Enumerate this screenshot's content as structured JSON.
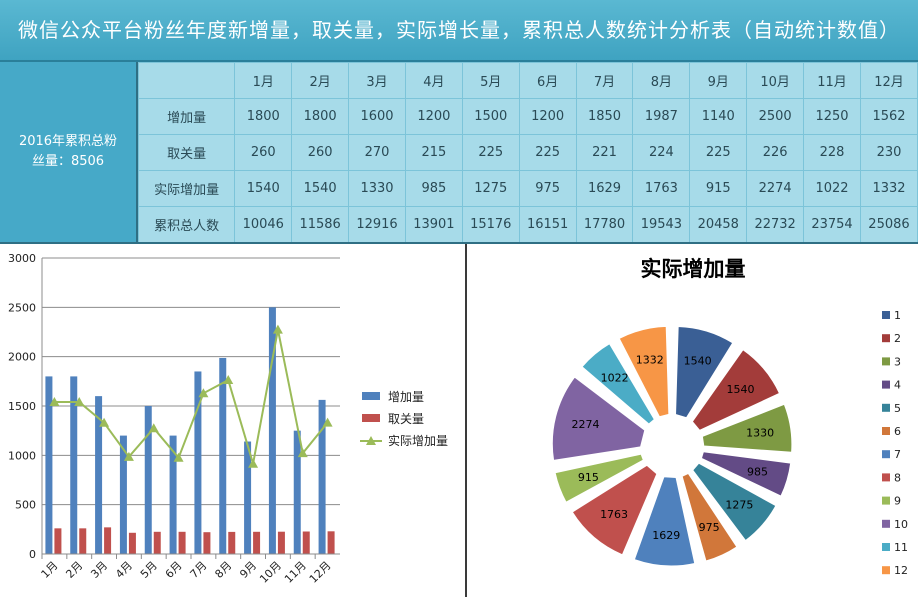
{
  "title": "微信公众平台粉丝年度新增量，取关量，实际增长量，累积总人数统计分析表（自动统计数值）",
  "summary": "2016年累积总粉丝量：8506",
  "table": {
    "months": [
      "1月",
      "2月",
      "3月",
      "4月",
      "5月",
      "6月",
      "7月",
      "8月",
      "9月",
      "10月",
      "11月",
      "12月"
    ],
    "rows": [
      {
        "label": "增加量",
        "values": [
          1800,
          1800,
          1600,
          1200,
          1500,
          1200,
          1850,
          1987,
          1140,
          2500,
          1250,
          1562
        ]
      },
      {
        "label": "取关量",
        "values": [
          260,
          260,
          270,
          215,
          225,
          225,
          221,
          224,
          225,
          226,
          228,
          230
        ]
      },
      {
        "label": "实际增加量",
        "values": [
          1540,
          1540,
          1330,
          985,
          1275,
          975,
          1629,
          1763,
          915,
          2274,
          1022,
          1332
        ]
      },
      {
        "label": "累积总人数",
        "values": [
          10046,
          11586,
          12916,
          13901,
          15176,
          16151,
          17780,
          19543,
          20458,
          22732,
          23754,
          25086
        ]
      }
    ]
  },
  "chart_data": [
    {
      "type": "bar",
      "categories": [
        "1月",
        "2月",
        "3月",
        "4月",
        "5月",
        "6月",
        "7月",
        "8月",
        "9月",
        "10月",
        "11月",
        "12月"
      ],
      "ylim": [
        0,
        3000
      ],
      "yticks": [
        0,
        500,
        1000,
        1500,
        2000,
        2500,
        3000
      ],
      "grid": true,
      "legend": "right",
      "series": [
        {
          "name": "增加量",
          "kind": "bar",
          "color": "#4f81bd",
          "values": [
            1800,
            1800,
            1600,
            1200,
            1500,
            1200,
            1850,
            1987,
            1140,
            2500,
            1250,
            1562
          ]
        },
        {
          "name": "取关量",
          "kind": "bar",
          "color": "#c0504d",
          "values": [
            260,
            260,
            270,
            215,
            225,
            225,
            221,
            224,
            225,
            226,
            228,
            230
          ]
        },
        {
          "name": "实际增加量",
          "kind": "line",
          "color": "#9bbb59",
          "values": [
            1540,
            1540,
            1330,
            985,
            1275,
            975,
            1629,
            1763,
            915,
            2274,
            1022,
            1332
          ]
        }
      ]
    },
    {
      "type": "pie",
      "title": "实际增加量",
      "exploded": true,
      "legend": "right",
      "labels": [
        "1",
        "2",
        "3",
        "4",
        "5",
        "6",
        "7",
        "8",
        "9",
        "10",
        "11",
        "12"
      ],
      "values": [
        1540,
        1540,
        1330,
        985,
        1275,
        975,
        1629,
        1763,
        915,
        2274,
        1022,
        1332
      ],
      "colors": [
        "#3a5f95",
        "#a33c3a",
        "#7e9a43",
        "#634b86",
        "#368399",
        "#d1773a",
        "#4f81bd",
        "#c0504d",
        "#9bbb59",
        "#8064a2",
        "#4bacc6",
        "#f79646"
      ]
    }
  ]
}
